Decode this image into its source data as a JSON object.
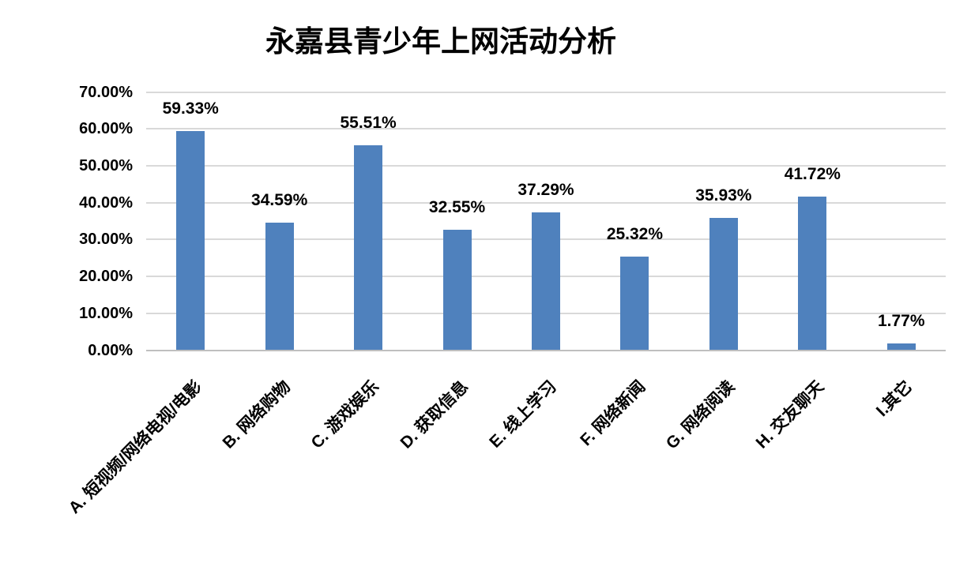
{
  "chart_data": {
    "type": "bar",
    "title": "永嘉县青少年上网活动分析",
    "categories": [
      "A. 短视频/网络电视/电影",
      "B. 网络购物",
      "C. 游戏娱乐",
      "D. 获取信息",
      "E. 线上学习",
      "F. 网络新闻",
      "G. 网络阅读",
      "H. 交友聊天",
      "I.其它"
    ],
    "values": [
      59.33,
      34.59,
      55.51,
      32.55,
      37.29,
      25.32,
      35.93,
      41.72,
      1.77
    ],
    "data_labels": [
      "59.33%",
      "34.59%",
      "55.51%",
      "32.55%",
      "37.29%",
      "25.32%",
      "35.93%",
      "41.72%",
      "1.77%"
    ],
    "xlabel": "",
    "ylabel": "",
    "ylim": [
      0,
      70
    ],
    "ytick_interval": 10,
    "ytick_labels": [
      "0.00%",
      "10.00%",
      "20.00%",
      "30.00%",
      "40.00%",
      "50.00%",
      "60.00%",
      "70.00%"
    ],
    "grid": true,
    "legend": "none",
    "colors": {
      "bar_fill": "#4F81BD",
      "gridline": "#D9D9D9",
      "axis_line": "#BFBFBF",
      "text": "#000000",
      "background": "#FFFFFF"
    }
  }
}
